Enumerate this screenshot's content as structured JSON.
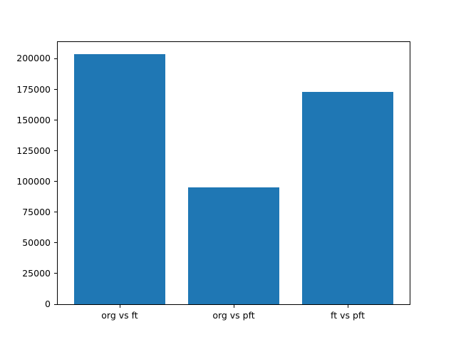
{
  "figure": {
    "background": "#ffffff",
    "axes_edge_color": "#000000",
    "tick_color": "#000000"
  },
  "chart_data": {
    "type": "bar",
    "categories": [
      "org vs ft",
      "org vs pft",
      "ft vs pft"
    ],
    "values": [
      204000,
      95000,
      173000
    ],
    "title": "",
    "xlabel": "",
    "ylabel": "",
    "xlim": [
      -0.55,
      2.55
    ],
    "ylim": [
      0,
      214200
    ],
    "yticks": [
      0,
      25000,
      50000,
      75000,
      100000,
      125000,
      150000,
      175000,
      200000
    ],
    "bar_color": "#1f77b4",
    "bar_width": 0.8,
    "grid": false,
    "legend_position": "none"
  }
}
